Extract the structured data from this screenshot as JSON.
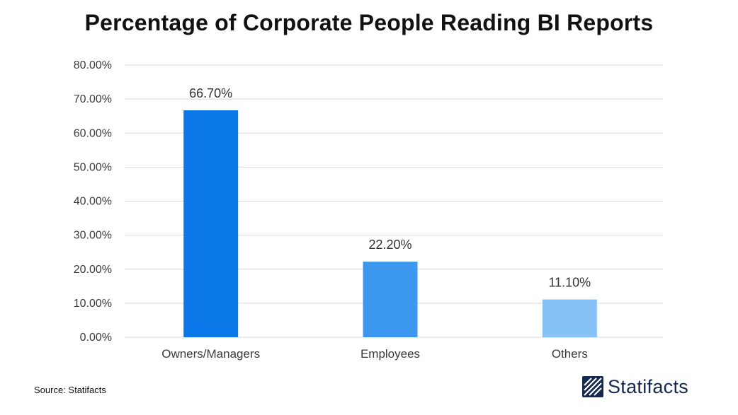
{
  "chart_data": {
    "type": "bar",
    "title": "Percentage of Corporate People Reading BI Reports",
    "categories": [
      "Owners/Managers",
      "Employees",
      "Others"
    ],
    "values": [
      66.7,
      22.2,
      11.1
    ],
    "data_labels": [
      "66.70%",
      "22.20%",
      "11.10%"
    ],
    "bar_colors": [
      "#0a78e8",
      "#3c98ee",
      "#86c2f6"
    ],
    "xlabel": "",
    "ylabel": "",
    "ylim": [
      0,
      80
    ],
    "yticks": [
      0,
      10,
      20,
      30,
      40,
      50,
      60,
      70,
      80
    ],
    "ytick_labels": [
      "0.00%",
      "10.00%",
      "20.00%",
      "30.00%",
      "40.00%",
      "50.00%",
      "60.00%",
      "70.00%",
      "80.00%"
    ],
    "grid": true,
    "legend": "none"
  },
  "footer": {
    "source": "Source: Statifacts",
    "brand_name": "Statifacts",
    "brand_icon": "statifacts-logo-icon"
  },
  "colors": {
    "gridline": "#d9d9d9",
    "brand": "#14294d"
  }
}
